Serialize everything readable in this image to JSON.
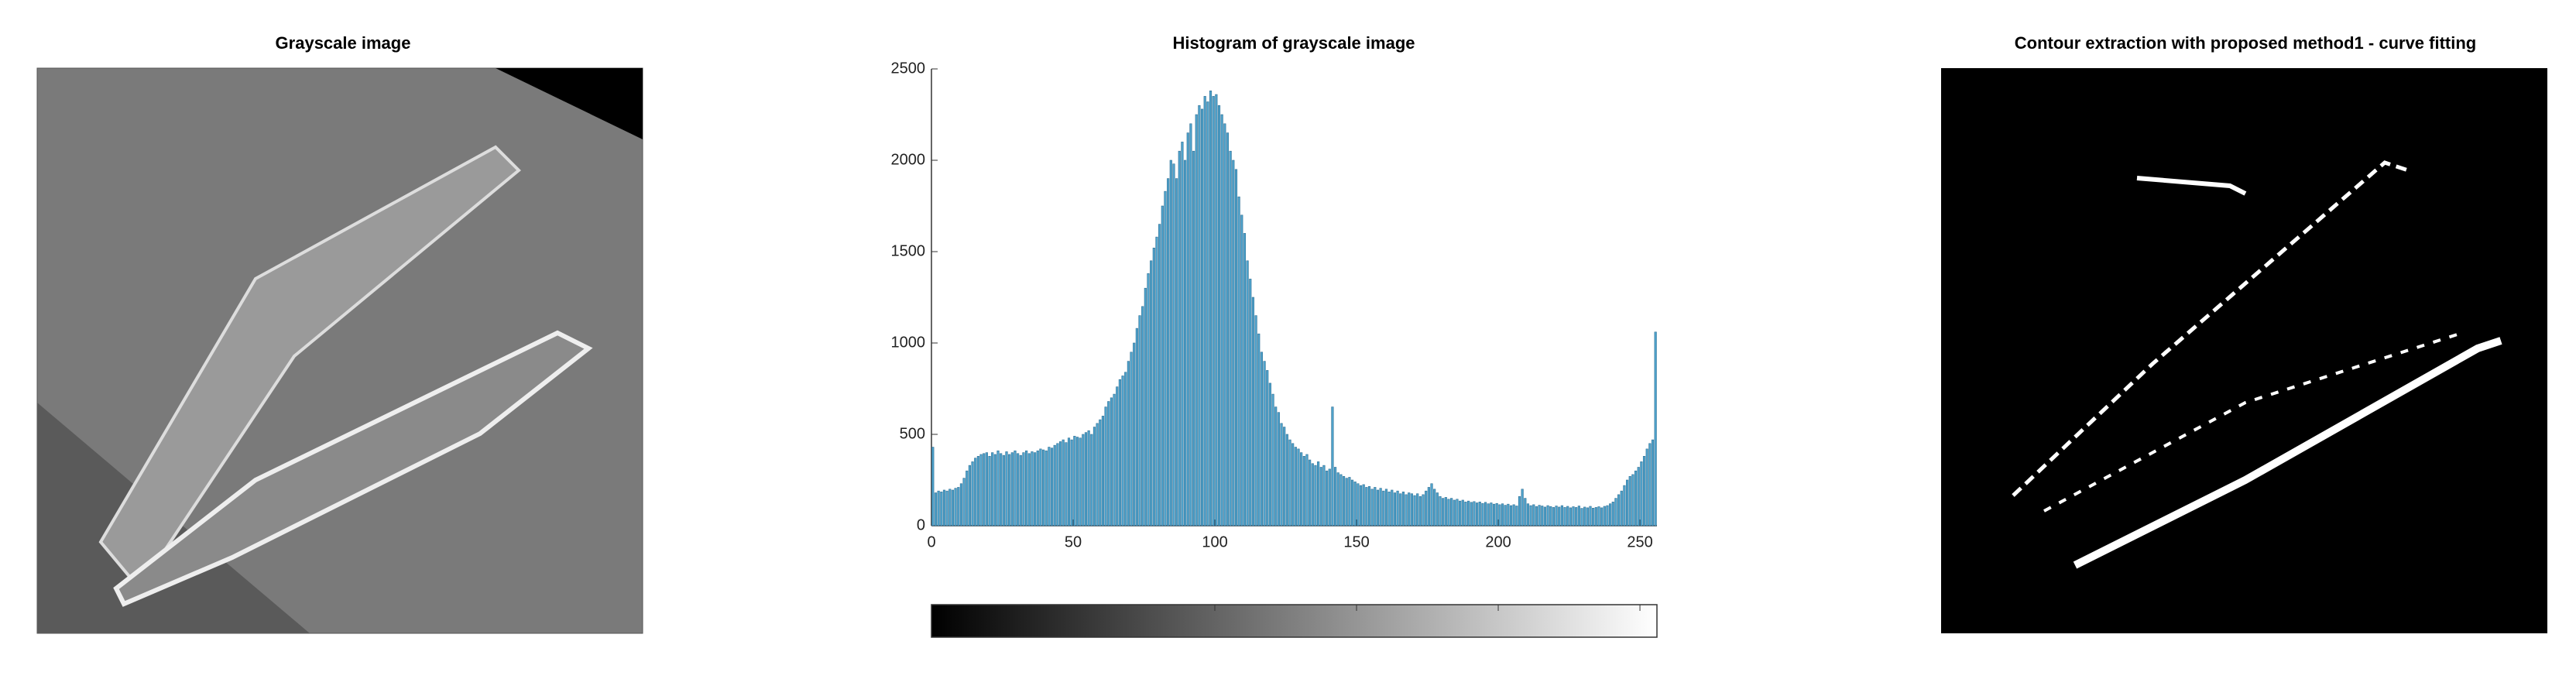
{
  "images": [
    {
      "title": "Grayscale image"
    },
    {
      "title": "Contour extraction with proposed method1 - curve fitting"
    }
  ],
  "chart_data": {
    "type": "histogram",
    "title": "Histogram of grayscale image",
    "color": "#4fa3cc",
    "edge_color": "#2f6f94",
    "bins": [
      0,
      1,
      2,
      3,
      4,
      5,
      6,
      7,
      8,
      9,
      10,
      11,
      12,
      13,
      14,
      15,
      16,
      17,
      18,
      19,
      20,
      21,
      22,
      23,
      24,
      25,
      26,
      27,
      28,
      29,
      30,
      31,
      32,
      33,
      34,
      35,
      36,
      37,
      38,
      39,
      40,
      41,
      42,
      43,
      44,
      45,
      46,
      47,
      48,
      49,
      50,
      51,
      52,
      53,
      54,
      55,
      56,
      57,
      58,
      59,
      60,
      61,
      62,
      63,
      64,
      65,
      66,
      67,
      68,
      69,
      70,
      71,
      72,
      73,
      74,
      75,
      76,
      77,
      78,
      79,
      80,
      81,
      82,
      83,
      84,
      85,
      86,
      87,
      88,
      89,
      90,
      91,
      92,
      93,
      94,
      95,
      96,
      97,
      98,
      99,
      100,
      101,
      102,
      103,
      104,
      105,
      106,
      107,
      108,
      109,
      110,
      111,
      112,
      113,
      114,
      115,
      116,
      117,
      118,
      119,
      120,
      121,
      122,
      123,
      124,
      125,
      126,
      127,
      128,
      129,
      130,
      131,
      132,
      133,
      134,
      135,
      136,
      137,
      138,
      139,
      140,
      141,
      142,
      143,
      144,
      145,
      146,
      147,
      148,
      149,
      150,
      151,
      152,
      153,
      154,
      155,
      156,
      157,
      158,
      159,
      160,
      161,
      162,
      163,
      164,
      165,
      166,
      167,
      168,
      169,
      170,
      171,
      172,
      173,
      174,
      175,
      176,
      177,
      178,
      179,
      180,
      181,
      182,
      183,
      184,
      185,
      186,
      187,
      188,
      189,
      190,
      191,
      192,
      193,
      194,
      195,
      196,
      197,
      198,
      199,
      200,
      201,
      202,
      203,
      204,
      205,
      206,
      207,
      208,
      209,
      210,
      211,
      212,
      213,
      214,
      215,
      216,
      217,
      218,
      219,
      220,
      221,
      222,
      223,
      224,
      225,
      226,
      227,
      228,
      229,
      230,
      231,
      232,
      233,
      234,
      235,
      236,
      237,
      238,
      239,
      240,
      241,
      242,
      243,
      244,
      245,
      246,
      247,
      248,
      249,
      250,
      251,
      252,
      253,
      254,
      255,
      256
    ],
    "values": [
      430,
      180,
      190,
      185,
      195,
      190,
      200,
      195,
      205,
      210,
      230,
      260,
      300,
      330,
      350,
      370,
      380,
      390,
      395,
      400,
      380,
      400,
      390,
      410,
      395,
      385,
      405,
      390,
      400,
      410,
      395,
      385,
      400,
      410,
      395,
      405,
      400,
      410,
      420,
      415,
      410,
      430,
      425,
      440,
      450,
      460,
      470,
      455,
      480,
      470,
      490,
      485,
      480,
      500,
      510,
      520,
      500,
      540,
      560,
      580,
      600,
      650,
      680,
      700,
      720,
      760,
      800,
      820,
      840,
      900,
      950,
      1000,
      1080,
      1150,
      1200,
      1300,
      1380,
      1450,
      1520,
      1580,
      1650,
      1750,
      1830,
      1900,
      2000,
      1980,
      1900,
      2050,
      2100,
      2000,
      2150,
      2200,
      2050,
      2250,
      2300,
      2280,
      2350,
      2320,
      2380,
      2350,
      2360,
      2300,
      2250,
      2200,
      2150,
      2050,
      2000,
      1950,
      1800,
      1700,
      1600,
      1450,
      1350,
      1250,
      1150,
      1050,
      950,
      900,
      850,
      780,
      720,
      650,
      620,
      560,
      540,
      500,
      470,
      450,
      430,
      420,
      400,
      380,
      390,
      360,
      340,
      330,
      350,
      320,
      330,
      300,
      310,
      650,
      320,
      290,
      280,
      270,
      260,
      265,
      250,
      240,
      230,
      220,
      225,
      210,
      215,
      200,
      210,
      195,
      205,
      190,
      200,
      185,
      195,
      180,
      190,
      175,
      185,
      170,
      180,
      175,
      165,
      175,
      160,
      170,
      190,
      210,
      230,
      200,
      180,
      160,
      150,
      155,
      145,
      150,
      140,
      145,
      135,
      140,
      130,
      135,
      128,
      132,
      125,
      130,
      122,
      128,
      120,
      125,
      118,
      122,
      115,
      120,
      112,
      118,
      110,
      115,
      108,
      160,
      200,
      150,
      120,
      110,
      115,
      105,
      112,
      108,
      102,
      110,
      105,
      100,
      108,
      102,
      110,
      100,
      106,
      98,
      104,
      100,
      108,
      95,
      102,
      98,
      106,
      96,
      100,
      104,
      98,
      106,
      110,
      120,
      130,
      150,
      170,
      190,
      220,
      250,
      270,
      280,
      300,
      320,
      350,
      380,
      420,
      450,
      470,
      1060
    ],
    "xlim": [
      0,
      256
    ],
    "xticks": [
      0,
      50,
      100,
      150,
      200,
      250
    ],
    "ylim": [
      0,
      2500
    ],
    "yticks": [
      0,
      500,
      1000,
      1500,
      2000,
      2500
    ],
    "colorbar": true
  }
}
